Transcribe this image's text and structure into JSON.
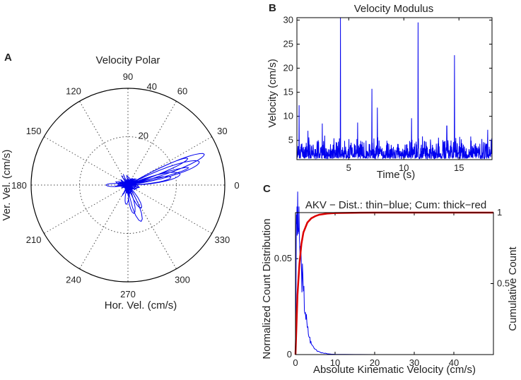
{
  "chart_data": [
    {
      "panel": "A",
      "type": "polar",
      "title": "Velocity Polar",
      "xlabel": "Hor. Vel. (cm/s)",
      "ylabel": "Ver. Vel. (cm/s)",
      "radial_max": 40,
      "radial_ticks": [
        {
          "r": 20,
          "label": "20"
        },
        {
          "r": 40,
          "label": "40"
        }
      ],
      "angle_ticks": [
        {
          "deg": 0,
          "label": "0"
        },
        {
          "deg": 30,
          "label": "30"
        },
        {
          "deg": 60,
          "label": "60"
        },
        {
          "deg": 90,
          "label": "90"
        },
        {
          "deg": 120,
          "label": "120"
        },
        {
          "deg": 150,
          "label": "150"
        },
        {
          "deg": 180,
          "label": "180"
        },
        {
          "deg": 210,
          "label": "210"
        },
        {
          "deg": 240,
          "label": "240"
        },
        {
          "deg": 270,
          "label": "270"
        },
        {
          "deg": 300,
          "label": "300"
        },
        {
          "deg": 330,
          "label": "330"
        }
      ],
      "color": "#0000ee"
    },
    {
      "panel": "B",
      "type": "line",
      "title": "Velocity Modulus",
      "xlabel": "Time (s)",
      "ylabel": "Velocity (cm/s)",
      "xlim": [
        0.3,
        18
      ],
      "ylim": [
        1,
        30.5
      ],
      "xticks": [
        5,
        10,
        15
      ],
      "yticks": [
        5,
        10,
        15,
        20,
        25,
        30
      ],
      "peaks": [
        {
          "x": 4.25,
          "y": 30.5
        },
        {
          "x": 11.3,
          "y": 29.5
        },
        {
          "x": 14.6,
          "y": 22.7
        },
        {
          "x": 7.1,
          "y": 15.7
        },
        {
          "x": 7.6,
          "y": 11.8
        },
        {
          "x": 10.7,
          "y": 9.6
        },
        {
          "x": 0.5,
          "y": 12.3
        },
        {
          "x": 2.6,
          "y": 8.5
        },
        {
          "x": 5.8,
          "y": 8.7
        },
        {
          "x": 13.9,
          "y": 8.0
        },
        {
          "x": 17.6,
          "y": 7.2
        },
        {
          "x": 1.3,
          "y": 7.0
        }
      ],
      "color": "#0000ee"
    },
    {
      "panel": "C",
      "type": "line",
      "title": "AKV − Dist.: thin−blue; Cum: thick−red",
      "xlabel": "Absolute Kinematic Velocity (cm/s)",
      "ylabel": "Normalized Count Distribution",
      "y2label": "Cumulative Count",
      "xlim": [
        0,
        50
      ],
      "ylim": [
        0,
        0.074
      ],
      "y2lim": [
        0,
        1
      ],
      "xticks": [
        0,
        10,
        20,
        30,
        40
      ],
      "yticks": [
        {
          "v": 0,
          "label": "0"
        },
        {
          "v": 0.05,
          "label": "0.05"
        }
      ],
      "y2ticks": [
        {
          "v": 0.5,
          "label": "0.5"
        },
        {
          "v": 1,
          "label": "1"
        }
      ],
      "series": [
        {
          "name": "Dist.",
          "color": "#0000ee",
          "style": "thin",
          "x": [
            0,
            0.25,
            0.5,
            0.75,
            1,
            1.5,
            2,
            2.5,
            3,
            3.5,
            4,
            5,
            6,
            7,
            8,
            10,
            15,
            20,
            50
          ],
          "y": [
            0.002,
            0.073,
            0.07,
            0.066,
            0.06,
            0.046,
            0.033,
            0.022,
            0.014,
            0.009,
            0.0055,
            0.0028,
            0.0015,
            0.0008,
            0.0004,
            0.00015,
            5e-05,
            0,
            0
          ]
        },
        {
          "name": "Cum.",
          "color": "#dd0000",
          "style": "thick",
          "x": [
            0,
            0.5,
            1,
            1.5,
            2,
            3,
            4,
            5,
            6,
            8,
            10,
            15,
            20,
            50
          ],
          "y": [
            0,
            0.42,
            0.64,
            0.78,
            0.86,
            0.93,
            0.96,
            0.975,
            0.985,
            0.993,
            0.997,
            0.999,
            1.0,
            1.0
          ]
        }
      ]
    }
  ],
  "labels": {
    "a": "A",
    "b": "B",
    "c": "C"
  }
}
